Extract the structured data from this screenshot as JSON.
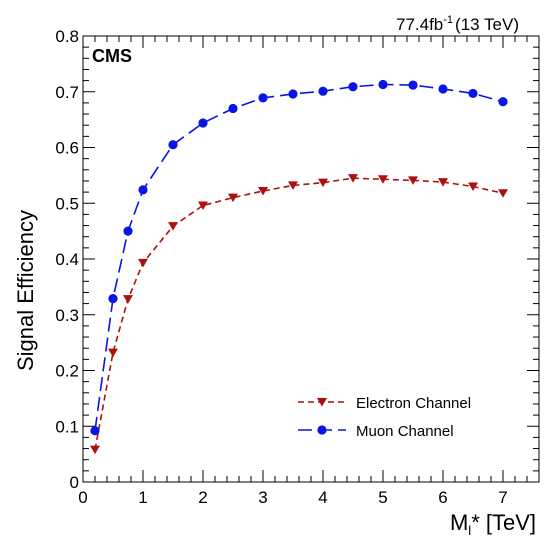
{
  "chart_data": {
    "type": "line",
    "lumi_label": "77.4fb",
    "lumi_superscript": "-1",
    "energy_label": "(13 TeV)",
    "experiment_label": "CMS",
    "xlabel_main": "M",
    "xlabel_sub": "l",
    "xlabel_rest": "* [TeV]",
    "ylabel": "Signal Efficiency",
    "xlim": [
      0,
      7.6
    ],
    "ylim": [
      0,
      0.8
    ],
    "x_ticks": [
      0,
      1,
      2,
      3,
      4,
      5,
      6,
      7
    ],
    "y_ticks": [
      0,
      0.1,
      0.2,
      0.3,
      0.4,
      0.5,
      0.6,
      0.7,
      0.8
    ],
    "x_tick_labels": [
      "0",
      "1",
      "2",
      "3",
      "4",
      "5",
      "6",
      "7"
    ],
    "y_tick_labels": [
      "0",
      "0.1",
      "0.2",
      "0.3",
      "0.4",
      "0.5",
      "0.6",
      "0.7",
      "0.8"
    ],
    "legend_position": "lower-right",
    "grid": false,
    "series": [
      {
        "name": "Electron Channel",
        "color": "#aa1111",
        "line_style": "dashed",
        "marker": "triangle-down",
        "x": [
          0.2,
          0.5,
          0.75,
          1.0,
          1.5,
          2.0,
          2.5,
          3.0,
          3.5,
          4.0,
          4.5,
          5.0,
          5.5,
          6.0,
          6.5,
          7.0
        ],
        "y": [
          0.058,
          0.232,
          0.328,
          0.393,
          0.459,
          0.496,
          0.51,
          0.522,
          0.532,
          0.537,
          0.545,
          0.543,
          0.541,
          0.538,
          0.53,
          0.518
        ]
      },
      {
        "name": "Muon Channel",
        "color": "#0a14e6",
        "line_style": "long-dash",
        "marker": "circle",
        "x": [
          0.2,
          0.5,
          0.75,
          1.0,
          1.5,
          2.0,
          2.5,
          3.0,
          3.5,
          4.0,
          4.5,
          5.0,
          5.5,
          6.0,
          6.5,
          7.0
        ],
        "y": [
          0.092,
          0.329,
          0.45,
          0.524,
          0.605,
          0.644,
          0.67,
          0.689,
          0.696,
          0.701,
          0.709,
          0.713,
          0.712,
          0.705,
          0.697,
          0.682
        ]
      }
    ]
  }
}
